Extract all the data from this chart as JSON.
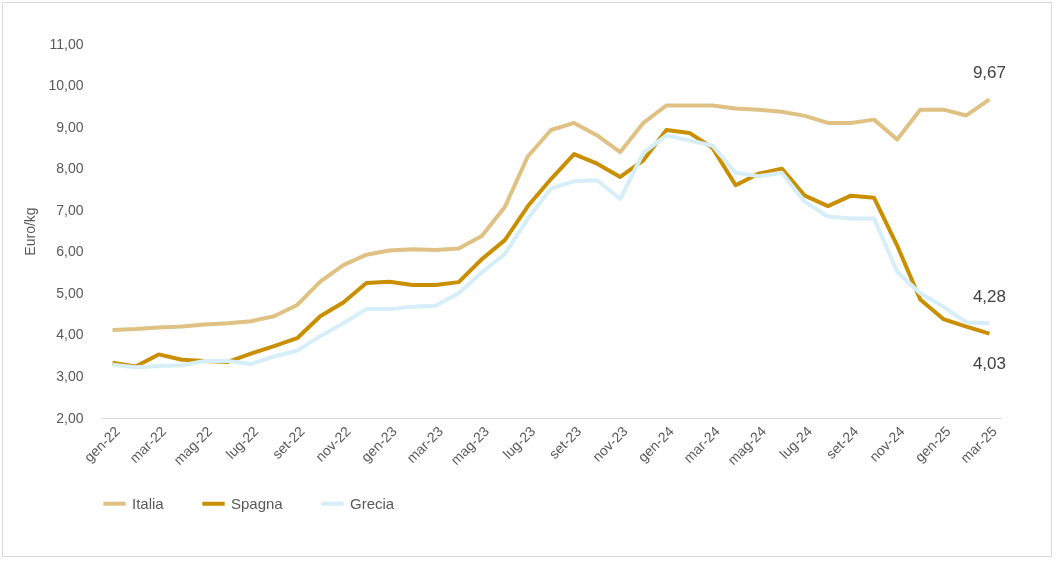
{
  "chart_data": {
    "type": "line",
    "ylabel": "Euro/kg",
    "categories": [
      "gen-22",
      null,
      "mar-22",
      null,
      "mag-22",
      null,
      "lug-22",
      null,
      "set-22",
      null,
      "nov-22",
      null,
      "gen-23",
      null,
      "mar-23",
      null,
      "mag-23",
      null,
      "lug-23",
      null,
      "set-23",
      null,
      "nov-23",
      null,
      "gen-24",
      null,
      "mar-24",
      null,
      "mag-24",
      null,
      "lug-24",
      null,
      "set-24",
      null,
      "nov-24",
      null,
      "gen-25",
      null,
      "mar-25"
    ],
    "series": [
      {
        "name": "Italia",
        "color": "#dfc184",
        "values": [
          4.12,
          4.14,
          4.18,
          4.2,
          4.25,
          4.28,
          4.33,
          4.45,
          4.72,
          5.28,
          5.68,
          5.93,
          6.03,
          6.06,
          6.04,
          6.08,
          6.38,
          7.08,
          8.3,
          8.93,
          9.1,
          8.8,
          8.4,
          9.1,
          9.52,
          9.52,
          9.52,
          9.45,
          9.42,
          9.37,
          9.27,
          9.1,
          9.1,
          9.18,
          8.7,
          9.42,
          9.42,
          9.28,
          9.67
        ],
        "value_labels": [
          null,
          null,
          null,
          null,
          null,
          null,
          null,
          null,
          null,
          null,
          null,
          null,
          null,
          null,
          null,
          null,
          null,
          null,
          null,
          null,
          null,
          null,
          null,
          null,
          null,
          null,
          null,
          null,
          null,
          null,
          null,
          null,
          null,
          null,
          null,
          null,
          null,
          null,
          "9,67"
        ]
      },
      {
        "name": "Spagna",
        "color": "#c98f00",
        "values": [
          3.33,
          3.24,
          3.53,
          3.4,
          3.37,
          3.35,
          3.55,
          3.73,
          3.92,
          4.45,
          4.78,
          5.25,
          5.28,
          5.2,
          5.2,
          5.27,
          5.82,
          6.28,
          7.1,
          7.75,
          8.35,
          8.12,
          7.8,
          8.2,
          8.93,
          8.86,
          8.5,
          7.6,
          7.88,
          8.0,
          7.35,
          7.1,
          7.35,
          7.3,
          6.15,
          4.85,
          4.38,
          4.2,
          4.03
        ],
        "value_labels": [
          null,
          null,
          null,
          null,
          null,
          null,
          null,
          null,
          null,
          null,
          null,
          null,
          null,
          null,
          null,
          null,
          null,
          null,
          null,
          null,
          null,
          null,
          null,
          null,
          null,
          null,
          null,
          null,
          null,
          null,
          null,
          null,
          null,
          null,
          null,
          null,
          null,
          null,
          "4,03"
        ]
      },
      {
        "name": "Grecia",
        "color": "#d5eef7",
        "values": [
          3.28,
          3.22,
          3.25,
          3.27,
          3.37,
          3.37,
          3.3,
          3.48,
          3.62,
          3.97,
          4.28,
          4.62,
          4.62,
          4.68,
          4.7,
          5.0,
          5.5,
          5.95,
          6.8,
          7.52,
          7.7,
          7.72,
          7.27,
          8.38,
          8.8,
          8.68,
          8.55,
          7.9,
          7.82,
          7.9,
          7.2,
          6.85,
          6.8,
          6.8,
          5.52,
          5.0,
          4.68,
          4.3,
          4.28
        ],
        "value_labels": [
          null,
          null,
          null,
          null,
          null,
          null,
          null,
          null,
          null,
          null,
          null,
          null,
          null,
          null,
          null,
          null,
          null,
          null,
          null,
          null,
          null,
          null,
          null,
          null,
          null,
          null,
          null,
          null,
          null,
          null,
          null,
          null,
          null,
          null,
          null,
          null,
          null,
          null,
          "4,28"
        ]
      }
    ],
    "ylim": [
      2,
      11
    ],
    "yticks": [
      {
        "value": 2,
        "label": "2,00"
      },
      {
        "value": 3,
        "label": "3,00"
      },
      {
        "value": 4,
        "label": "4,00"
      },
      {
        "value": 5,
        "label": "5,00"
      },
      {
        "value": 6,
        "label": "6,00"
      },
      {
        "value": 7,
        "label": "7,00"
      },
      {
        "value": 8,
        "label": "8,00"
      },
      {
        "value": 9,
        "label": "9,00"
      },
      {
        "value": 10,
        "label": "10,00"
      },
      {
        "value": 11,
        "label": "11,00"
      }
    ],
    "grid": false,
    "legend": "bottom",
    "marker": "none",
    "line_style": "solid"
  }
}
